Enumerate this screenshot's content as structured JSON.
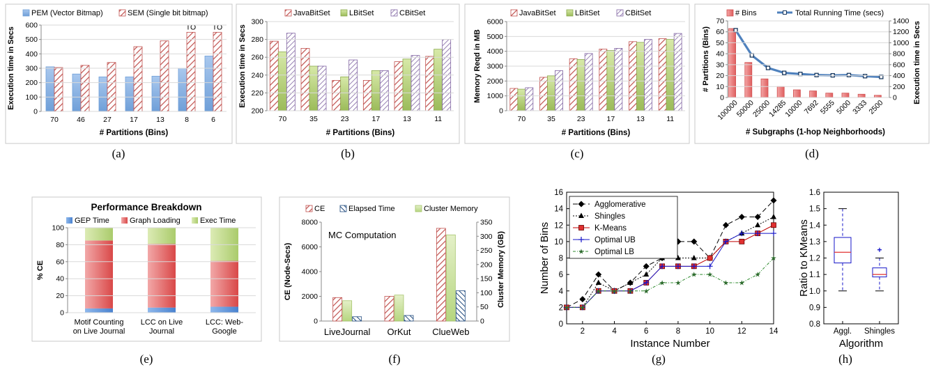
{
  "captions": [
    "(a)",
    "(b)",
    "(c)",
    "(d)",
    "(e)",
    "(f)",
    "(g)",
    "(h)"
  ],
  "colors": {
    "pem": "#8db4e2",
    "sem": "#c0504d",
    "java": "#c0504d",
    "lbit": "#9bbb59",
    "cbit": "#8064a2",
    "bins": "#e26b6b",
    "line": "#4f81bd",
    "gep": "#558ed5",
    "load": "#e06666",
    "exec": "#c3d69b",
    "ce": "#c0504d",
    "elapsed": "#1f497d",
    "clustermem": "#c3d69b"
  },
  "chart_data": [
    {
      "id": "a",
      "type": "bar",
      "categories": [
        "70",
        "46",
        "27",
        "17",
        "13",
        "8",
        "6"
      ],
      "series": [
        {
          "name": "PEM (Vector Bitmap)",
          "values": [
            310,
            260,
            240,
            240,
            245,
            300,
            385
          ]
        },
        {
          "name": "SEM (Single bit bitmap)",
          "values": [
            305,
            320,
            340,
            450,
            490,
            550,
            550
          ]
        }
      ],
      "annotations": [
        {
          "series": 1,
          "index": 5,
          "text": "TO"
        },
        {
          "series": 1,
          "index": 6,
          "text": "TO"
        }
      ],
      "xlabel": "# Partitions (Bins)",
      "ylabel": "Execution time in Secs",
      "ylim": [
        0,
        600
      ],
      "yticks": [
        0,
        100,
        200,
        300,
        400,
        500,
        600
      ],
      "grid": true,
      "legend": "top"
    },
    {
      "id": "b",
      "type": "bar",
      "categories": [
        "70",
        "35",
        "23",
        "17",
        "13",
        "11"
      ],
      "series": [
        {
          "name": "JavaBitSet",
          "values": [
            278,
            270,
            234,
            234,
            255,
            261
          ]
        },
        {
          "name": "LBitSet",
          "values": [
            266,
            250,
            238,
            245,
            258,
            269
          ]
        },
        {
          "name": "CBitSet",
          "values": [
            287,
            250,
            257,
            245,
            262,
            280
          ]
        }
      ],
      "xlabel": "# Partitions (Bins)",
      "ylabel": "Execution time in Secs",
      "ylim": [
        200,
        300
      ],
      "yticks": [
        200,
        220,
        240,
        260,
        280,
        300
      ],
      "grid": true,
      "legend": "top"
    },
    {
      "id": "c",
      "type": "bar",
      "categories": [
        "70",
        "35",
        "23",
        "17",
        "13",
        "11"
      ],
      "series": [
        {
          "name": "JavaBitSet",
          "values": [
            1500,
            2250,
            3500,
            4150,
            4650,
            4850
          ]
        },
        {
          "name": "LBitSet",
          "values": [
            1450,
            2350,
            3450,
            4050,
            4600,
            4800
          ]
        },
        {
          "name": "CBitSet",
          "values": [
            1550,
            2700,
            3850,
            4200,
            4800,
            5200
          ]
        }
      ],
      "xlabel": "# Partitions (Bins)",
      "ylabel": "Memory Reqd in MB",
      "ylim": [
        0,
        6000
      ],
      "yticks": [
        0,
        1000,
        2000,
        3000,
        4000,
        5000,
        6000
      ],
      "grid": true,
      "legend": "top"
    },
    {
      "id": "d",
      "type": "bar",
      "categories": [
        "100000",
        "50000",
        "25000",
        "14285",
        "10000",
        "7692",
        "5555",
        "5000",
        "3333",
        "2500"
      ],
      "series": [
        {
          "name": "# Bins",
          "axis": "left",
          "values": [
            63,
            32,
            17,
            10,
            7,
            6,
            4,
            4,
            3,
            2
          ]
        },
        {
          "name": "Total Running Time (secs)",
          "axis": "right",
          "type": "line",
          "values": [
            1230,
            770,
            540,
            450,
            430,
            410,
            405,
            410,
            390,
            375
          ]
        }
      ],
      "xlabel": "# Subgraphs (1-hop Neighborhoods)",
      "ylabel": "# Partitions (Bins)",
      "ylabel_right": "Execution time in Secs",
      "ylim": [
        0,
        70
      ],
      "yticks": [
        0,
        10,
        20,
        30,
        40,
        50,
        60,
        70
      ],
      "ylim_right": [
        0,
        1400
      ],
      "yticks_right": [
        0,
        200,
        400,
        600,
        800,
        1000,
        1200,
        1400
      ],
      "grid": true,
      "legend": "top"
    },
    {
      "id": "e",
      "type": "bar",
      "title": "Performance Breakdown",
      "categories": [
        "Motif Counting on Live Journal",
        "LCC on Live Journal",
        "LCC: Web-Google"
      ],
      "category_lines": [
        [
          "Motif Counting",
          "on Live Journal"
        ],
        [
          "LCC on Live",
          "Journal"
        ],
        [
          "LCC: Web-",
          "Google"
        ]
      ],
      "series": [
        {
          "name": "GEP Time",
          "values": [
            5,
            6,
            7
          ]
        },
        {
          "name": "Graph Loading",
          "values": [
            80,
            75,
            54
          ]
        },
        {
          "name": "Exec Time",
          "values": [
            15,
            19,
            39
          ]
        }
      ],
      "stacked": true,
      "ylabel": "% CE",
      "ylim": [
        0,
        100
      ],
      "yticks": [
        0,
        20,
        40,
        60,
        80,
        100
      ],
      "grid": true,
      "legend": "top"
    },
    {
      "id": "f",
      "type": "bar",
      "annotation": "MC Computation",
      "categories": [
        "LiveJournal",
        "OrKut",
        "ClueWeb"
      ],
      "series": [
        {
          "name": "CE",
          "axis": "left",
          "values": [
            1900,
            2000,
            7500
          ]
        },
        {
          "name": "Elapsed Time",
          "axis": "left",
          "values": [
            350,
            450,
            2450
          ]
        },
        {
          "name": "Cluster Memory",
          "axis": "right",
          "values": [
            72,
            92,
            305
          ]
        }
      ],
      "ylabel": "CE (Node-Secs)",
      "ylabel_right": "Cluster Memory (GB)",
      "ylim": [
        0,
        8000
      ],
      "yticks": [
        0,
        2000,
        4000,
        6000,
        8000
      ],
      "ylim_right": [
        0,
        350
      ],
      "yticks_right": [
        0,
        50,
        100,
        150,
        200,
        250,
        300,
        350
      ],
      "grid": false,
      "legend": "top"
    },
    {
      "id": "g",
      "type": "line",
      "x": [
        1,
        2,
        3,
        4,
        5,
        6,
        7,
        8,
        9,
        10,
        11,
        12,
        13,
        14
      ],
      "series": [
        {
          "name": "Agglomerative",
          "values": [
            2,
            3,
            6,
            4,
            5,
            7,
            8,
            10,
            10,
            8,
            12,
            13,
            13,
            15
          ]
        },
        {
          "name": "Shingles",
          "values": [
            2,
            2,
            5,
            4,
            5,
            6,
            8,
            8,
            8,
            8,
            10,
            11,
            12,
            13
          ]
        },
        {
          "name": "K-Means",
          "values": [
            2,
            2,
            4,
            4,
            4,
            5,
            7,
            7,
            7,
            8,
            10,
            10,
            11,
            12
          ]
        },
        {
          "name": "Optimal UB",
          "values": [
            2,
            2,
            4,
            4,
            4,
            5,
            7,
            7,
            7,
            7,
            10,
            11,
            11,
            11
          ]
        },
        {
          "name": "Optimal LB",
          "values": [
            2,
            2,
            4,
            4,
            4,
            4,
            5,
            5,
            6,
            6,
            5,
            5,
            6,
            8
          ]
        }
      ],
      "xlabel": "Instance Number",
      "ylabel": "Number of Bins",
      "xlim": [
        1,
        14
      ],
      "xticks": [
        2,
        4,
        6,
        8,
        10,
        12,
        14
      ],
      "ylim": [
        0,
        16
      ],
      "yticks": [
        0,
        2,
        4,
        6,
        8,
        10,
        12,
        14,
        16
      ],
      "grid": false,
      "legend": "top-left"
    },
    {
      "id": "h",
      "type": "box",
      "categories": [
        "Aggl.",
        "Shingles"
      ],
      "boxes": [
        {
          "min": 1.0,
          "q1": 1.17,
          "median": 1.235,
          "q3": 1.325,
          "max": 1.5,
          "outliers": []
        },
        {
          "min": 1.0,
          "q1": 1.085,
          "median": 1.1,
          "q3": 1.14,
          "max": 1.2,
          "outliers": [
            1.25
          ]
        }
      ],
      "xlabel": "Algorithm",
      "ylabel": "Ratio to KMeans",
      "ylim": [
        0.8,
        1.6
      ],
      "yticks": [
        "0.8",
        "0.9",
        "1.0",
        "1.1",
        "1.2",
        "1.3",
        "1.4",
        "1.5",
        "1.6"
      ],
      "grid": false
    }
  ]
}
